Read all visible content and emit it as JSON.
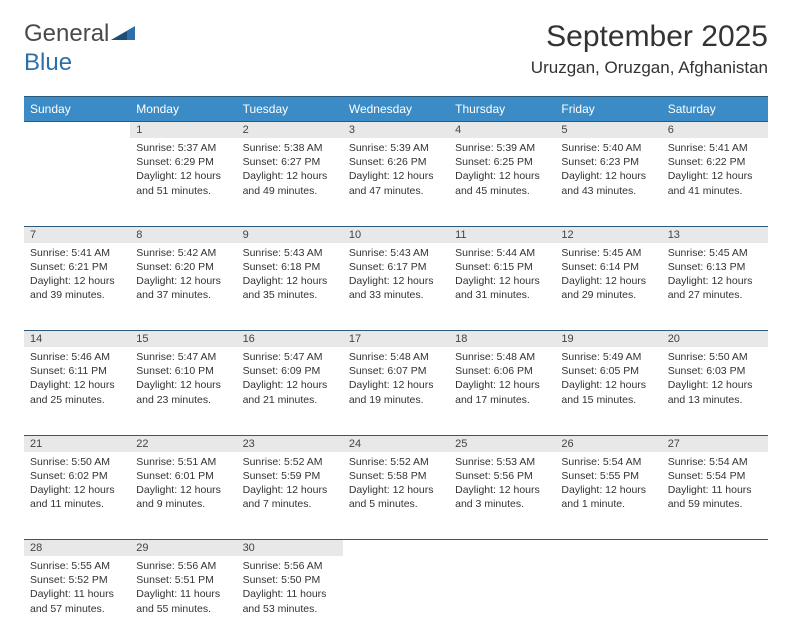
{
  "brand": {
    "text1": "General",
    "text2": "Blue"
  },
  "title": "September 2025",
  "location": "Uruzgan, Oruzgan, Afghanistan",
  "colors": {
    "header_bg": "#3b8bc6",
    "header_text": "#ffffff",
    "daynum_bg": "#e8e8e8",
    "border": "#2d5a7c",
    "brand_gray": "#4a4a4a",
    "brand_blue": "#2f6fa8"
  },
  "weekdays": [
    "Sunday",
    "Monday",
    "Tuesday",
    "Wednesday",
    "Thursday",
    "Friday",
    "Saturday"
  ],
  "weeks": [
    [
      null,
      {
        "n": "1",
        "sr": "5:37 AM",
        "ss": "6:29 PM",
        "dl": "12 hours and 51 minutes."
      },
      {
        "n": "2",
        "sr": "5:38 AM",
        "ss": "6:27 PM",
        "dl": "12 hours and 49 minutes."
      },
      {
        "n": "3",
        "sr": "5:39 AM",
        "ss": "6:26 PM",
        "dl": "12 hours and 47 minutes."
      },
      {
        "n": "4",
        "sr": "5:39 AM",
        "ss": "6:25 PM",
        "dl": "12 hours and 45 minutes."
      },
      {
        "n": "5",
        "sr": "5:40 AM",
        "ss": "6:23 PM",
        "dl": "12 hours and 43 minutes."
      },
      {
        "n": "6",
        "sr": "5:41 AM",
        "ss": "6:22 PM",
        "dl": "12 hours and 41 minutes."
      }
    ],
    [
      {
        "n": "7",
        "sr": "5:41 AM",
        "ss": "6:21 PM",
        "dl": "12 hours and 39 minutes."
      },
      {
        "n": "8",
        "sr": "5:42 AM",
        "ss": "6:20 PM",
        "dl": "12 hours and 37 minutes."
      },
      {
        "n": "9",
        "sr": "5:43 AM",
        "ss": "6:18 PM",
        "dl": "12 hours and 35 minutes."
      },
      {
        "n": "10",
        "sr": "5:43 AM",
        "ss": "6:17 PM",
        "dl": "12 hours and 33 minutes."
      },
      {
        "n": "11",
        "sr": "5:44 AM",
        "ss": "6:15 PM",
        "dl": "12 hours and 31 minutes."
      },
      {
        "n": "12",
        "sr": "5:45 AM",
        "ss": "6:14 PM",
        "dl": "12 hours and 29 minutes."
      },
      {
        "n": "13",
        "sr": "5:45 AM",
        "ss": "6:13 PM",
        "dl": "12 hours and 27 minutes."
      }
    ],
    [
      {
        "n": "14",
        "sr": "5:46 AM",
        "ss": "6:11 PM",
        "dl": "12 hours and 25 minutes."
      },
      {
        "n": "15",
        "sr": "5:47 AM",
        "ss": "6:10 PM",
        "dl": "12 hours and 23 minutes."
      },
      {
        "n": "16",
        "sr": "5:47 AM",
        "ss": "6:09 PM",
        "dl": "12 hours and 21 minutes."
      },
      {
        "n": "17",
        "sr": "5:48 AM",
        "ss": "6:07 PM",
        "dl": "12 hours and 19 minutes."
      },
      {
        "n": "18",
        "sr": "5:48 AM",
        "ss": "6:06 PM",
        "dl": "12 hours and 17 minutes."
      },
      {
        "n": "19",
        "sr": "5:49 AM",
        "ss": "6:05 PM",
        "dl": "12 hours and 15 minutes."
      },
      {
        "n": "20",
        "sr": "5:50 AM",
        "ss": "6:03 PM",
        "dl": "12 hours and 13 minutes."
      }
    ],
    [
      {
        "n": "21",
        "sr": "5:50 AM",
        "ss": "6:02 PM",
        "dl": "12 hours and 11 minutes."
      },
      {
        "n": "22",
        "sr": "5:51 AM",
        "ss": "6:01 PM",
        "dl": "12 hours and 9 minutes."
      },
      {
        "n": "23",
        "sr": "5:52 AM",
        "ss": "5:59 PM",
        "dl": "12 hours and 7 minutes."
      },
      {
        "n": "24",
        "sr": "5:52 AM",
        "ss": "5:58 PM",
        "dl": "12 hours and 5 minutes."
      },
      {
        "n": "25",
        "sr": "5:53 AM",
        "ss": "5:56 PM",
        "dl": "12 hours and 3 minutes."
      },
      {
        "n": "26",
        "sr": "5:54 AM",
        "ss": "5:55 PM",
        "dl": "12 hours and 1 minute."
      },
      {
        "n": "27",
        "sr": "5:54 AM",
        "ss": "5:54 PM",
        "dl": "11 hours and 59 minutes."
      }
    ],
    [
      {
        "n": "28",
        "sr": "5:55 AM",
        "ss": "5:52 PM",
        "dl": "11 hours and 57 minutes."
      },
      {
        "n": "29",
        "sr": "5:56 AM",
        "ss": "5:51 PM",
        "dl": "11 hours and 55 minutes."
      },
      {
        "n": "30",
        "sr": "5:56 AM",
        "ss": "5:50 PM",
        "dl": "11 hours and 53 minutes."
      },
      null,
      null,
      null,
      null
    ]
  ],
  "labels": {
    "sunrise": "Sunrise:",
    "sunset": "Sunset:",
    "daylight": "Daylight:"
  }
}
